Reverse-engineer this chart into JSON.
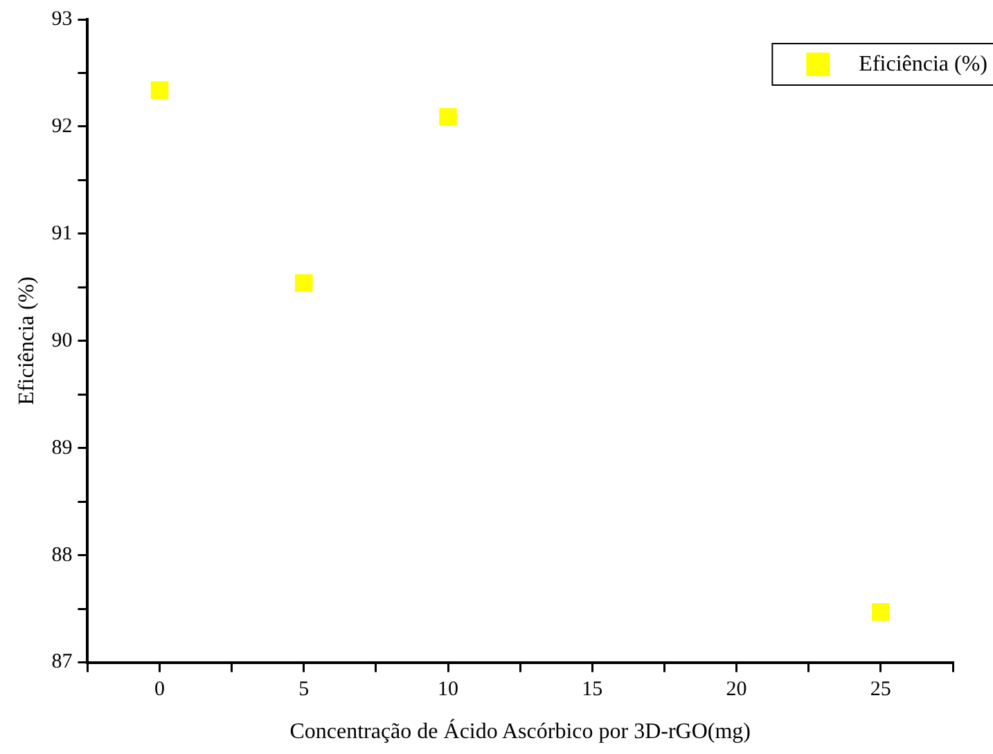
{
  "chart_data": {
    "type": "scatter",
    "xlabel": "Concentração de Ácido Ascórbico por 3D-rGO(mg)",
    "ylabel": "Eficiência (%)",
    "x": [
      0,
      5,
      10,
      25
    ],
    "series": [
      {
        "name": "Eficiência (%)",
        "color": "#ffff00",
        "values": [
          92.34,
          90.54,
          92.09,
          87.47
        ]
      }
    ],
    "xlim": [
      -2.5,
      27.5
    ],
    "xticks": [
      {
        "value": -2.5,
        "label": null
      },
      0,
      {
        "value": 2.5,
        "label": null
      },
      5,
      {
        "value": 7.5,
        "label": null
      },
      10,
      {
        "value": 12.5,
        "label": null
      },
      15,
      {
        "value": 17.5,
        "label": null
      },
      20,
      {
        "value": 22.5,
        "label": null
      },
      25,
      {
        "value": 27.5,
        "label": null
      }
    ],
    "ylim": [
      87,
      93
    ],
    "yticks": [
      87,
      {
        "value": 87.5,
        "label": null
      },
      88,
      {
        "value": 88.5,
        "label": null
      },
      89,
      {
        "value": 89.5,
        "label": null
      },
      90,
      {
        "value": 90.5,
        "label": null
      },
      91,
      {
        "value": 91.5,
        "label": null
      },
      92,
      {
        "value": 92.5,
        "label": null
      },
      93
    ],
    "marker": "square",
    "legend": "top right",
    "grid": false
  }
}
